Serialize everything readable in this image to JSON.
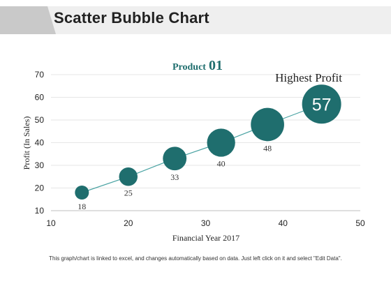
{
  "header": {
    "title": "Scatter Bubble Chart"
  },
  "chart_data": {
    "type": "scatter",
    "title_prefix": "Product",
    "title_number": "01",
    "xlabel": "Financial  Year 2017",
    "ylabel": "Profit  (In Sales)",
    "xlim": [
      10,
      50
    ],
    "ylim": [
      10,
      70
    ],
    "xticks": [
      "10",
      "20",
      "30",
      "40",
      "50"
    ],
    "yticks": [
      "10",
      "20",
      "30",
      "40",
      "50",
      "60",
      "70"
    ],
    "grid": true,
    "points": [
      {
        "x": 14,
        "y": 18,
        "label": "18"
      },
      {
        "x": 20,
        "y": 25,
        "label": "25"
      },
      {
        "x": 26,
        "y": 33,
        "label": "33"
      },
      {
        "x": 32,
        "y": 40,
        "label": "40"
      },
      {
        "x": 38,
        "y": 48,
        "label": "48"
      },
      {
        "x": 45,
        "y": 57,
        "label": "57"
      }
    ],
    "annotation": "Highest Profit",
    "color": "#1f6e6e",
    "line_color": "#4aa3a3"
  },
  "footnote": "This graph/chart is linked to excel, and changes automatically based on data. Just left click on it and select \"Edit Data\"."
}
